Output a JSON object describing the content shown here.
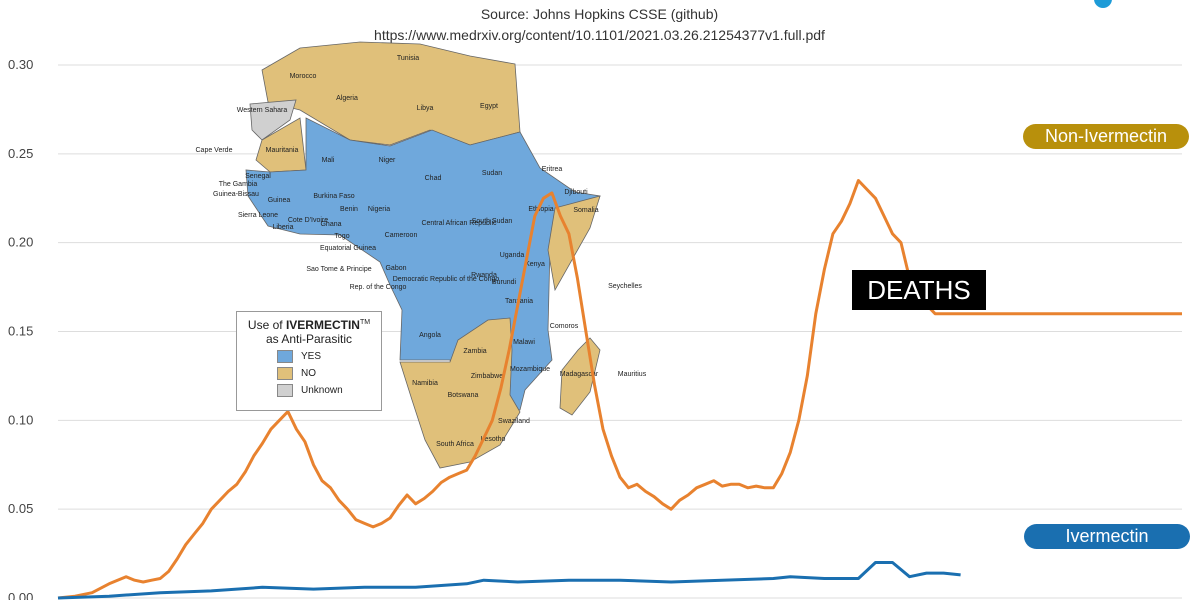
{
  "header": {
    "source_line": "Source: Johns Hopkins CSSE (github)",
    "url_line": "https://www.medrxiv.org/content/10.1101/2021.03.26.21254377v1.full.pdf"
  },
  "badge": {
    "deaths": "DEATHS"
  },
  "colors": {
    "non_ivermectin": "#e8822f",
    "ivermectin": "#1a6fb0",
    "yes": "#6fa8dc",
    "no": "#e0c07a",
    "unknown": "#d0d0d0"
  },
  "legend": {
    "title_prefix": "Use of ",
    "title_bold": "IVERMECTIN",
    "title_tm": "TM",
    "title_line2": "as Anti-Parasitic",
    "items": [
      {
        "label": "YES",
        "color": "#6fa8dc"
      },
      {
        "label": "NO",
        "color": "#e0c07a"
      },
      {
        "label": "Unknown",
        "color": "#d0d0d0"
      }
    ]
  },
  "map_labels": [
    "Tunisia",
    "Morocco",
    "Algeria",
    "Libya",
    "Egypt",
    "Western Sahara",
    "Mauritania",
    "Mali",
    "Niger",
    "Chad",
    "Sudan",
    "Eritrea",
    "Cape Verde",
    "Senegal",
    "The Gambia",
    "Guinea-Bissau",
    "Guinea",
    "Burkina Faso",
    "Djibouti",
    "Sierra Leone",
    "Liberia",
    "Cote D'Ivoire",
    "Ghana",
    "Benin",
    "Nigeria",
    "Ethiopia",
    "Somalia",
    "Togo",
    "Central African Republic",
    "South Sudan",
    "Equatorial Guinea",
    "Cameroon",
    "Sao Tome & Principe",
    "Gabon",
    "Uganda",
    "Kenya",
    "Rep. of the Congo",
    "Democratic Republic of the Congo",
    "Rwanda",
    "Burundi",
    "Tanzania",
    "Seychelles",
    "Angola",
    "Comoros",
    "Zambia",
    "Malawi",
    "Mozambique",
    "Zimbabwe",
    "Namibia",
    "Madagascar",
    "Mauritius",
    "Botswana",
    "Swaziland",
    "South Africa",
    "Lesotho"
  ],
  "chart_data": {
    "type": "line",
    "title": "",
    "xlabel": "",
    "ylabel": "",
    "ylim": [
      0,
      0.3
    ],
    "yticks": [
      "0.00",
      "0.05",
      "0.10",
      "0.15",
      "0.20",
      "0.25",
      "0.30"
    ],
    "grid": true,
    "series": [
      {
        "name": "Non-Ivermectin",
        "color": "#e8822f",
        "x": [
          0,
          10,
          20,
          30,
          40,
          45,
          50,
          55,
          60,
          65,
          70,
          75,
          80,
          85,
          90,
          95,
          100,
          105,
          110,
          115,
          120,
          125,
          130,
          135,
          140,
          145,
          150,
          155,
          160,
          165,
          170,
          175,
          180,
          185,
          190,
          195,
          200,
          205,
          210,
          215,
          220,
          225,
          230,
          235,
          240,
          245,
          250,
          255,
          260,
          265,
          270,
          275,
          280,
          285,
          290,
          295,
          300,
          305,
          310,
          315,
          320,
          325,
          330,
          335,
          340,
          345,
          350,
          355,
          360,
          365,
          370,
          375,
          380,
          385,
          390,
          395,
          400,
          405,
          410,
          415,
          420,
          425,
          430,
          435,
          440,
          445,
          450,
          455,
          460,
          465,
          470,
          475,
          480,
          485,
          490,
          495,
          500,
          505,
          510,
          515,
          520,
          525,
          530,
          535,
          540,
          545,
          550,
          555,
          560,
          565,
          570,
          575,
          580,
          585,
          590,
          595,
          600,
          605,
          610,
          615,
          620,
          625,
          630,
          635,
          640,
          645,
          650,
          655,
          660
        ],
        "values": [
          0,
          0.001,
          0.003,
          0.008,
          0.012,
          0.01,
          0.009,
          0.01,
          0.011,
          0.015,
          0.022,
          0.03,
          0.036,
          0.042,
          0.05,
          0.055,
          0.06,
          0.064,
          0.071,
          0.08,
          0.087,
          0.095,
          0.1,
          0.105,
          0.095,
          0.088,
          0.075,
          0.066,
          0.062,
          0.055,
          0.05,
          0.044,
          0.042,
          0.04,
          0.042,
          0.045,
          0.052,
          0.058,
          0.053,
          0.056,
          0.06,
          0.065,
          0.068,
          0.07,
          0.072,
          0.08,
          0.09,
          0.1,
          0.118,
          0.14,
          0.165,
          0.19,
          0.215,
          0.225,
          0.228,
          0.215,
          0.205,
          0.18,
          0.15,
          0.12,
          0.095,
          0.08,
          0.068,
          0.062,
          0.064,
          0.06,
          0.057,
          0.053,
          0.05,
          0.055,
          0.058,
          0.062,
          0.064,
          0.066,
          0.063,
          0.064,
          0.064,
          0.062,
          0.063,
          0.062,
          0.062,
          0.07,
          0.082,
          0.1,
          0.125,
          0.16,
          0.185,
          0.205,
          0.212,
          0.222,
          0.235,
          0.23,
          0.225,
          0.215,
          0.205,
          0.2,
          0.18,
          0.17,
          0.165,
          0.16,
          0.16,
          0.16,
          0.16,
          0.16,
          0.16,
          0.16,
          0.16,
          0.16,
          0.16,
          0.16,
          0.16,
          0.16,
          0.16,
          0.16,
          0.16,
          0.16,
          0.16,
          0.16,
          0.16,
          0.16,
          0.16,
          0.16,
          0.16,
          0.16,
          0.16,
          0.16,
          0.16,
          0.16,
          0.16
        ],
        "label": "Non-Ivermectin"
      },
      {
        "name": "Ivermectin",
        "color": "#1a6fb0",
        "x": [
          0,
          30,
          60,
          90,
          120,
          150,
          180,
          210,
          240,
          250,
          270,
          300,
          330,
          360,
          390,
          420,
          430,
          450,
          470,
          480,
          490,
          500,
          510,
          520,
          530
        ],
        "values": [
          0,
          0.001,
          0.003,
          0.004,
          0.006,
          0.005,
          0.006,
          0.006,
          0.008,
          0.01,
          0.009,
          0.01,
          0.01,
          0.009,
          0.01,
          0.011,
          0.012,
          0.011,
          0.011,
          0.02,
          0.02,
          0.012,
          0.014,
          0.014,
          0.013
        ],
        "label": "Ivermectin"
      }
    ]
  }
}
